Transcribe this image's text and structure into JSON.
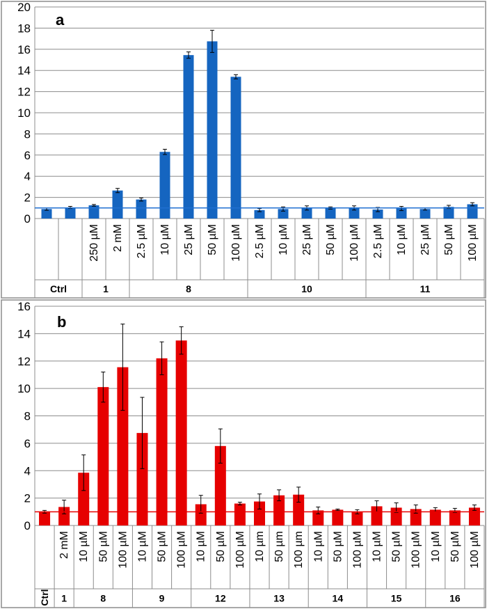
{
  "chart_data": [
    {
      "type": "bar",
      "title": "a",
      "ylim": [
        0,
        20
      ],
      "yticks": [
        0,
        2,
        4,
        6,
        8,
        10,
        12,
        14,
        16,
        18,
        20
      ],
      "grid": true,
      "bar_color": "#1565c0",
      "reference_line": {
        "value": 1,
        "color": "#1f6fd1"
      },
      "groups": [
        {
          "label": "Ctrl",
          "categories": [
            "",
            ""
          ],
          "values": [
            0.9,
            1.05
          ],
          "errors": [
            0.12,
            0.1
          ]
        },
        {
          "label": "1",
          "categories": [
            "250  µM",
            "2 mM"
          ],
          "values": [
            1.25,
            2.65
          ],
          "errors": [
            0.08,
            0.2
          ]
        },
        {
          "label": "8",
          "categories": [
            "2.5  µM",
            "10  µM",
            "25  µM",
            "50  µM",
            "100  µM"
          ],
          "values": [
            1.8,
            6.3,
            15.45,
            16.75,
            13.4
          ],
          "errors": [
            0.15,
            0.25,
            0.3,
            1.05,
            0.2
          ]
        },
        {
          "label": "10",
          "categories": [
            "2.5  µM",
            "10  µM",
            "25  µM",
            "50  µM",
            "100  µM"
          ],
          "values": [
            0.8,
            0.9,
            1.0,
            1.0,
            1.0
          ],
          "errors": [
            0.15,
            0.2,
            0.2,
            0.1,
            0.2
          ]
        },
        {
          "label": "11",
          "categories": [
            "2.5  µM",
            "10  µM",
            "25  µM",
            "50  µM",
            "100  µM"
          ],
          "values": [
            0.85,
            0.95,
            0.9,
            1.1,
            1.35
          ],
          "errors": [
            0.2,
            0.2,
            0.1,
            0.15,
            0.15
          ]
        }
      ]
    },
    {
      "type": "bar",
      "title": "b",
      "ylim": [
        0,
        16
      ],
      "yticks": [
        0,
        2,
        4,
        6,
        8,
        10,
        12,
        14,
        16
      ],
      "grid": true,
      "bar_color": "#e60000",
      "reference_line": {
        "value": 1,
        "color": "#e60000"
      },
      "groups": [
        {
          "label": "Ctrl",
          "categories": [
            ""
          ],
          "values": [
            1.0
          ],
          "errors": [
            0.1
          ]
        },
        {
          "label": "1",
          "categories": [
            "2 mM"
          ],
          "values": [
            1.35
          ],
          "errors": [
            0.5
          ]
        },
        {
          "label": "8",
          "categories": [
            "10  µM",
            "50  µM",
            "100  µM"
          ],
          "values": [
            3.85,
            10.1,
            11.55
          ],
          "errors": [
            1.3,
            1.1,
            3.15
          ]
        },
        {
          "label": "9",
          "categories": [
            "10  µM",
            "50  µM",
            "100  µM"
          ],
          "values": [
            6.75,
            12.2,
            13.5
          ],
          "errors": [
            2.6,
            1.2,
            1.0
          ]
        },
        {
          "label": "12",
          "categories": [
            "10  µM",
            "50  µM",
            "100  µM"
          ],
          "values": [
            1.55,
            5.8,
            1.6
          ],
          "errors": [
            0.65,
            1.25,
            0.1
          ]
        },
        {
          "label": "13",
          "categories": [
            "10  µm",
            "50  µm",
            "100  µm"
          ],
          "values": [
            1.75,
            2.2,
            2.25
          ],
          "errors": [
            0.55,
            0.4,
            0.55
          ]
        },
        {
          "label": "14",
          "categories": [
            "10  µM",
            "50  µM",
            "100  µM"
          ],
          "values": [
            1.1,
            1.15,
            1.0
          ],
          "errors": [
            0.25,
            0.05,
            0.15
          ]
        },
        {
          "label": "15",
          "categories": [
            "10  µM",
            "50  µM",
            "100  µM"
          ],
          "values": [
            1.4,
            1.3,
            1.2
          ],
          "errors": [
            0.4,
            0.35,
            0.3
          ]
        },
        {
          "label": "16",
          "categories": [
            "10  µM",
            "50  µM",
            "100  µM"
          ],
          "values": [
            1.15,
            1.1,
            1.3
          ],
          "errors": [
            0.15,
            0.15,
            0.2
          ]
        }
      ]
    }
  ]
}
